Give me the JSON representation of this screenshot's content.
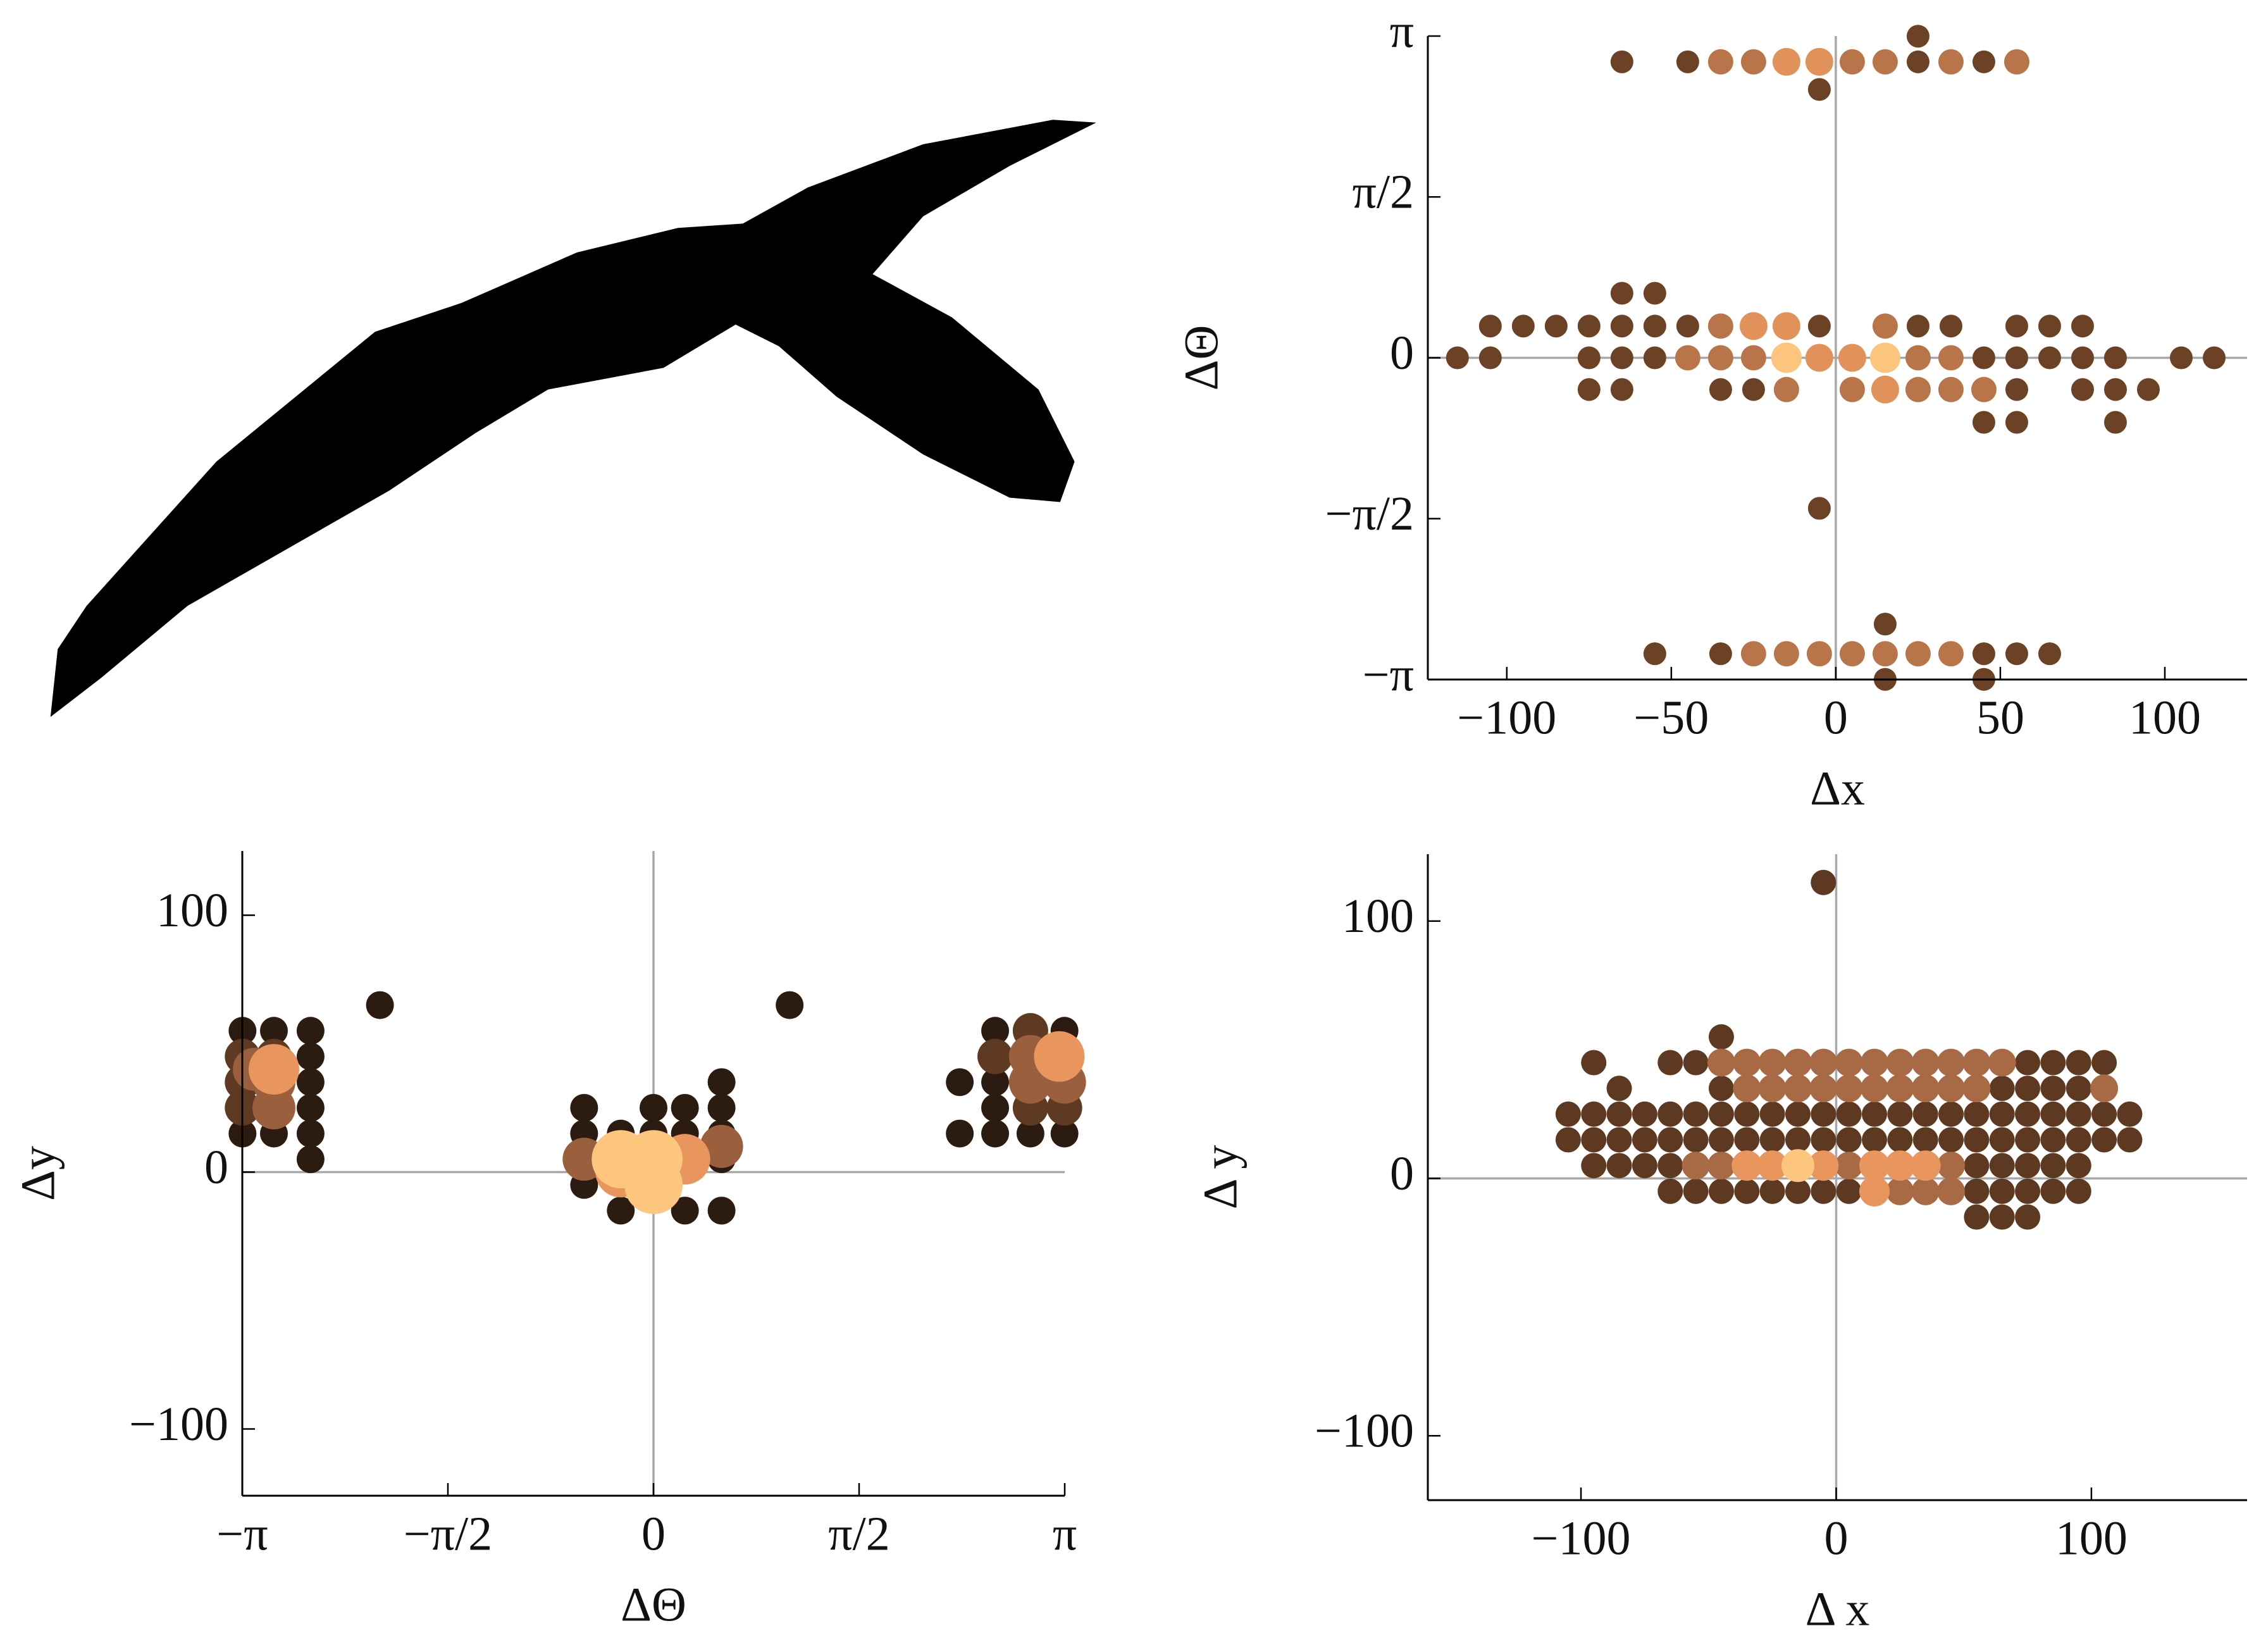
{
  "chart_data": [
    {
      "type": "scatter",
      "xlabel": "Δx",
      "ylabel": "ΔΘ",
      "xlim": [
        -124,
        125
      ],
      "ylim": [
        -3.1416,
        3.1416
      ],
      "xticks": [
        {
          "value": -100,
          "label": "−100"
        },
        {
          "value": -50,
          "label": "−50"
        },
        0,
        50,
        100
      ],
      "yticks": [
        {
          "value": -3.1416,
          "label": "−π"
        },
        {
          "value": -1.5708,
          "label": "−π/2"
        },
        0,
        {
          "value": 1.5708,
          "label": "π/2"
        },
        {
          "value": 3.1416,
          "label": "π"
        }
      ],
      "series": [
        {
          "color": "#6b4226",
          "x": [
            -65,
            -45,
            25,
            25,
            45,
            -5,
            -105,
            -95,
            -85,
            -75,
            -65,
            -55,
            -45,
            -5,
            25,
            35,
            55,
            65,
            75,
            -115,
            -105,
            -75,
            -65,
            -55,
            85,
            105,
            115,
            45,
            55,
            65,
            75,
            -75,
            -65,
            -35,
            -25,
            55,
            75,
            85,
            95,
            45,
            55,
            85,
            -65,
            -55,
            -5,
            -55,
            -35,
            45,
            55,
            65,
            15,
            15,
            45
          ],
          "y": [
            2.89,
            2.89,
            3.14,
            2.89,
            2.89,
            2.62,
            0.31,
            0.31,
            0.31,
            0.31,
            0.31,
            0.31,
            0.31,
            0.31,
            0.31,
            0.31,
            0.31,
            0.31,
            0.31,
            0,
            0,
            0,
            0,
            0,
            0,
            0,
            0,
            0,
            0,
            0,
            0,
            -0.31,
            -0.31,
            -0.31,
            -0.31,
            -0.31,
            -0.31,
            -0.31,
            -0.31,
            -0.63,
            -0.63,
            -0.63,
            0.63,
            0.63,
            -1.47,
            -2.89,
            -2.89,
            -2.89,
            -2.89,
            -2.89,
            -2.6,
            -3.14,
            -3.14
          ]
        },
        {
          "color": "#b87549",
          "x": [
            -35,
            -25,
            5,
            15,
            35,
            55,
            -35,
            15,
            -45,
            -35,
            -25,
            25,
            35,
            -15,
            5,
            25,
            35,
            45,
            -25,
            -15,
            -5,
            5,
            15,
            25,
            35
          ],
          "y": [
            2.89,
            2.89,
            2.89,
            2.89,
            2.89,
            2.89,
            0.31,
            0.31,
            0,
            0,
            0,
            0,
            0,
            -0.31,
            -0.31,
            -0.31,
            -0.31,
            -0.31,
            -2.89,
            -2.89,
            -2.89,
            -2.89,
            -2.89,
            -2.89,
            -2.89
          ]
        },
        {
          "color": "#e0925a",
          "x": [
            -25,
            -15,
            -5,
            -15,
            -5,
            5,
            15
          ],
          "y": [
            0.31,
            0.31,
            2.89,
            2.89,
            0,
            0,
            -0.31
          ]
        },
        {
          "color": "#fbc57e",
          "x": [
            -15,
            15
          ],
          "y": [
            0,
            0
          ]
        }
      ]
    },
    {
      "type": "scatter",
      "xlabel": "ΔΘ",
      "ylabel": "Δy",
      "xlim": [
        -3.1416,
        3.1416
      ],
      "ylim": [
        -126,
        125
      ],
      "xticks": [
        {
          "value": -3.1416,
          "label": "−π"
        },
        {
          "value": -1.5708,
          "label": "−π/2"
        },
        0,
        {
          "value": 1.5708,
          "label": "π/2"
        },
        {
          "value": 3.1416,
          "label": "π"
        }
      ],
      "yticks": [
        {
          "value": -100,
          "label": "−100"
        },
        0,
        100
      ],
      "series": [
        {
          "color": "#2b1b10",
          "x": [
            -2.62,
            -2.62,
            -2.62,
            -2.62,
            -2.62,
            -2.62,
            -3.14,
            -2.9,
            -3.14,
            -2.9,
            -2.09,
            1.04,
            -0.53,
            -0.53,
            -0.53,
            0,
            0.24,
            0.52,
            0.52,
            0.52,
            0.52,
            0.52,
            -0.25,
            0.24,
            -0.25,
            0,
            0.24,
            2.34,
            2.34,
            2.61,
            2.61,
            2.88,
            3.14,
            3.14,
            2.61,
            2.61
          ],
          "y": [
            55,
            45,
            35,
            25,
            15,
            5,
            55,
            55,
            15,
            15,
            65,
            65,
            25,
            15,
            -5,
            25,
            25,
            35,
            25,
            15,
            5,
            -15,
            -15,
            -15,
            15,
            15,
            15,
            35,
            15,
            55,
            15,
            15,
            55,
            15,
            25,
            35
          ]
        },
        {
          "color": "#5e3a22",
          "x": [
            -3.14,
            -3.14,
            -3.14,
            -2.9,
            2.88,
            2.88,
            3.14,
            2.61
          ],
          "y": [
            45,
            35,
            25,
            45,
            55,
            25,
            25,
            45
          ]
        },
        {
          "color": "#9a5f3c",
          "x": [
            -3.05,
            -2.9,
            -2.9,
            2.88,
            3.14,
            2.88,
            -0.53,
            0.52
          ],
          "y": [
            40,
            35,
            25,
            35,
            35,
            45,
            5,
            10
          ]
        },
        {
          "color": "#e8955e",
          "x": [
            -0.25,
            0.24,
            3.1,
            -2.9
          ],
          "y": [
            0,
            5,
            45,
            40
          ]
        },
        {
          "color": "#fcc67e",
          "x": [
            -0.25,
            0,
            0
          ],
          "y": [
            5,
            -5,
            5
          ]
        }
      ]
    },
    {
      "type": "scatter",
      "xlabel": "Δ x",
      "ylabel": "Δ y",
      "xlim": [
        -160,
        161
      ],
      "ylim": [
        -125,
        126
      ],
      "xticks": [
        {
          "value": -100,
          "label": "−100"
        },
        0,
        100
      ],
      "yticks": [
        {
          "value": -100,
          "label": "−100"
        },
        0,
        100
      ],
      "series": [
        {
          "color": "#5c3920",
          "x": [
            -95,
            -65,
            -55,
            75,
            85,
            95,
            105,
            -45,
            -85,
            -45,
            65,
            75,
            85,
            95,
            -105,
            -95,
            -85,
            -75,
            -65,
            -55,
            -45,
            -35,
            -25,
            -15,
            -5,
            5,
            15,
            25,
            35,
            45,
            55,
            65,
            75,
            85,
            95,
            105,
            115,
            -105,
            -95,
            -85,
            -75,
            -65,
            -55,
            -45,
            -35,
            -25,
            -15,
            -5,
            5,
            15,
            25,
            35,
            45,
            55,
            65,
            75,
            85,
            95,
            105,
            115,
            -95,
            -85,
            -75,
            -65,
            55,
            65,
            75,
            85,
            95,
            -65,
            -55,
            -45,
            -35,
            -25,
            -15,
            -5,
            5,
            55,
            65,
            75,
            85,
            95,
            55,
            65,
            75,
            -5
          ],
          "y": [
            45,
            45,
            45,
            45,
            45,
            45,
            45,
            55,
            35,
            35,
            35,
            35,
            35,
            35,
            25,
            25,
            25,
            25,
            25,
            25,
            25,
            25,
            25,
            25,
            25,
            25,
            25,
            25,
            25,
            25,
            25,
            25,
            25,
            25,
            25,
            25,
            25,
            15,
            15,
            15,
            15,
            15,
            15,
            15,
            15,
            15,
            15,
            15,
            15,
            15,
            15,
            15,
            15,
            15,
            15,
            15,
            15,
            15,
            15,
            15,
            5,
            5,
            5,
            5,
            5,
            5,
            5,
            5,
            5,
            -5,
            -5,
            -5,
            -5,
            -5,
            -5,
            -5,
            -5,
            -5,
            -5,
            -5,
            -5,
            -5,
            -15,
            -15,
            -15,
            115
          ]
        },
        {
          "color": "#a86a45",
          "x": [
            -45,
            -35,
            -25,
            -15,
            -5,
            5,
            15,
            25,
            35,
            45,
            55,
            65,
            -35,
            -25,
            -15,
            -5,
            5,
            15,
            25,
            35,
            45,
            55,
            105,
            -55,
            -45,
            5,
            45,
            25,
            35,
            45
          ],
          "y": [
            45,
            45,
            45,
            45,
            45,
            45,
            45,
            45,
            45,
            45,
            45,
            45,
            35,
            35,
            35,
            35,
            35,
            35,
            35,
            35,
            35,
            35,
            35,
            5,
            5,
            5,
            5,
            -5,
            -5,
            -5
          ]
        },
        {
          "color": "#e8955e",
          "x": [
            -35,
            -25,
            -5,
            15,
            25,
            35,
            15
          ],
          "y": [
            5,
            5,
            5,
            5,
            5,
            5,
            -5
          ]
        },
        {
          "color": "#fcc67e",
          "x": [
            -15
          ],
          "y": [
            5
          ]
        }
      ]
    }
  ]
}
